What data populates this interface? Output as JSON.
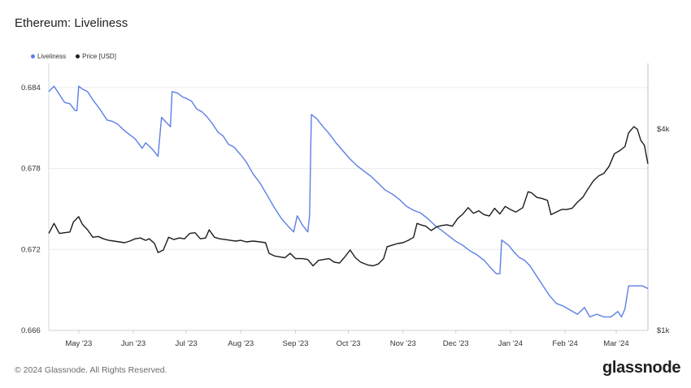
{
  "header": {
    "title": "Ethereum: Liveliness"
  },
  "footer": {
    "copyright": "© 2024 Glassnode. All Rights Reserved.",
    "brand": "glassnode"
  },
  "chart_data": {
    "type": "line",
    "title": "Ethereum: Liveliness",
    "legend_position": "top-left",
    "grid": true,
    "x_ticks": [
      "May '23",
      "Jun '23",
      "Jul '23",
      "Aug '23",
      "Sep '23",
      "Oct '23",
      "Nov '23",
      "Dec '23",
      "Jan '24",
      "Feb '24",
      "Mar '24"
    ],
    "x_tick_dates": [
      "2023-05-01",
      "2023-06-01",
      "2023-07-01",
      "2023-08-01",
      "2023-09-01",
      "2023-10-01",
      "2023-11-01",
      "2023-12-01",
      "2024-01-01",
      "2024-02-01",
      "2024-03-01"
    ],
    "xlim": [
      "2023-04-14",
      "2024-03-19"
    ],
    "y_left": {
      "ticks": [
        "0.684",
        "0.678",
        "0.672",
        "0.666"
      ],
      "tick_values": [
        0.684,
        0.678,
        0.672,
        0.666
      ],
      "ylim": [
        0.666,
        0.6858
      ]
    },
    "y_right": {
      "ticks": [
        "$4k",
        "$1k"
      ],
      "tick_values": [
        4000,
        1000
      ],
      "scale": "log",
      "ylim": [
        1000,
        6300
      ]
    },
    "series": [
      {
        "name": "Liveliness",
        "color": "#5b7fe6",
        "axis": "left",
        "points": [
          [
            "2023-04-14",
            0.6837
          ],
          [
            "2023-04-17",
            0.6841
          ],
          [
            "2023-04-20",
            0.6835
          ],
          [
            "2023-04-23",
            0.6829
          ],
          [
            "2023-04-26",
            0.6828
          ],
          [
            "2023-04-29",
            0.6823
          ],
          [
            "2023-04-30",
            0.6823
          ],
          [
            "2023-05-01",
            0.6841
          ],
          [
            "2023-05-03",
            0.6839
          ],
          [
            "2023-05-06",
            0.6837
          ],
          [
            "2023-05-09",
            0.6831
          ],
          [
            "2023-05-13",
            0.6824
          ],
          [
            "2023-05-17",
            0.6816
          ],
          [
            "2023-05-20",
            0.6815
          ],
          [
            "2023-05-23",
            0.6813
          ],
          [
            "2023-05-27",
            0.6808
          ],
          [
            "2023-05-30",
            0.6805
          ],
          [
            "2023-06-02",
            0.6802
          ],
          [
            "2023-06-06",
            0.6795
          ],
          [
            "2023-06-08",
            0.6799
          ],
          [
            "2023-06-12",
            0.6794
          ],
          [
            "2023-06-15",
            0.6789
          ],
          [
            "2023-06-17",
            0.6818
          ],
          [
            "2023-06-19",
            0.6815
          ],
          [
            "2023-06-22",
            0.6811
          ],
          [
            "2023-06-23",
            0.6837
          ],
          [
            "2023-06-26",
            0.6836
          ],
          [
            "2023-06-29",
            0.6833
          ],
          [
            "2023-07-01",
            0.6832
          ],
          [
            "2023-07-04",
            0.683
          ],
          [
            "2023-07-07",
            0.6824
          ],
          [
            "2023-07-10",
            0.6822
          ],
          [
            "2023-07-13",
            0.6818
          ],
          [
            "2023-07-16",
            0.6813
          ],
          [
            "2023-07-19",
            0.6807
          ],
          [
            "2023-07-22",
            0.6804
          ],
          [
            "2023-07-25",
            0.6798
          ],
          [
            "2023-07-28",
            0.6796
          ],
          [
            "2023-08-01",
            0.679
          ],
          [
            "2023-08-04",
            0.6785
          ],
          [
            "2023-08-08",
            0.6776
          ],
          [
            "2023-08-12",
            0.6769
          ],
          [
            "2023-08-16",
            0.676
          ],
          [
            "2023-08-20",
            0.6751
          ],
          [
            "2023-08-24",
            0.6743
          ],
          [
            "2023-08-28",
            0.6737
          ],
          [
            "2023-08-31",
            0.6733
          ],
          [
            "2023-09-02",
            0.6745
          ],
          [
            "2023-09-05",
            0.6738
          ],
          [
            "2023-09-08",
            0.6733
          ],
          [
            "2023-09-09",
            0.6745
          ],
          [
            "2023-09-10",
            0.682
          ],
          [
            "2023-09-13",
            0.6817
          ],
          [
            "2023-09-16",
            0.6812
          ],
          [
            "2023-09-20",
            0.6806
          ],
          [
            "2023-09-24",
            0.6799
          ],
          [
            "2023-09-28",
            0.6793
          ],
          [
            "2023-10-02",
            0.6787
          ],
          [
            "2023-10-06",
            0.6782
          ],
          [
            "2023-10-10",
            0.6778
          ],
          [
            "2023-10-14",
            0.6774
          ],
          [
            "2023-10-18",
            0.6769
          ],
          [
            "2023-10-22",
            0.6764
          ],
          [
            "2023-10-26",
            0.6761
          ],
          [
            "2023-10-30",
            0.6757
          ],
          [
            "2023-11-03",
            0.6752
          ],
          [
            "2023-11-07",
            0.6749
          ],
          [
            "2023-11-11",
            0.6747
          ],
          [
            "2023-11-15",
            0.6743
          ],
          [
            "2023-11-19",
            0.6738
          ],
          [
            "2023-11-23",
            0.6734
          ],
          [
            "2023-11-27",
            0.673
          ],
          [
            "2023-12-01",
            0.6726
          ],
          [
            "2023-12-05",
            0.6723
          ],
          [
            "2023-12-09",
            0.6719
          ],
          [
            "2023-12-13",
            0.6716
          ],
          [
            "2023-12-17",
            0.6712
          ],
          [
            "2023-12-21",
            0.6706
          ],
          [
            "2023-12-24",
            0.6702
          ],
          [
            "2023-12-26",
            0.6702
          ],
          [
            "2023-12-27",
            0.6727
          ],
          [
            "2023-12-31",
            0.6723
          ],
          [
            "2024-01-03",
            0.6718
          ],
          [
            "2024-01-06",
            0.6714
          ],
          [
            "2024-01-09",
            0.6712
          ],
          [
            "2024-01-12",
            0.6708
          ],
          [
            "2024-01-15",
            0.6702
          ],
          [
            "2024-01-19",
            0.6694
          ],
          [
            "2024-01-23",
            0.6686
          ],
          [
            "2024-01-27",
            0.668
          ],
          [
            "2024-01-31",
            0.6678
          ],
          [
            "2024-02-04",
            0.6675
          ],
          [
            "2024-02-08",
            0.6672
          ],
          [
            "2024-02-12",
            0.6677
          ],
          [
            "2024-02-15",
            0.667
          ],
          [
            "2024-02-19",
            0.6672
          ],
          [
            "2024-02-23",
            0.667
          ],
          [
            "2024-02-27",
            0.667
          ],
          [
            "2024-03-02",
            0.6674
          ],
          [
            "2024-03-04",
            0.667
          ],
          [
            "2024-03-06",
            0.6676
          ],
          [
            "2024-03-08",
            0.6693
          ],
          [
            "2024-03-12",
            0.6693
          ],
          [
            "2024-03-16",
            0.6693
          ],
          [
            "2024-03-19",
            0.6691
          ]
        ]
      },
      {
        "name": "Price [USD]",
        "color": "#1c1c1c",
        "axis": "right",
        "points": [
          [
            "2023-04-14",
            1950
          ],
          [
            "2023-04-17",
            2090
          ],
          [
            "2023-04-20",
            1950
          ],
          [
            "2023-04-23",
            1960
          ],
          [
            "2023-04-26",
            1970
          ],
          [
            "2023-04-28",
            2110
          ],
          [
            "2023-05-01",
            2190
          ],
          [
            "2023-05-03",
            2080
          ],
          [
            "2023-05-06",
            2000
          ],
          [
            "2023-05-09",
            1900
          ],
          [
            "2023-05-12",
            1910
          ],
          [
            "2023-05-15",
            1880
          ],
          [
            "2023-05-18",
            1860
          ],
          [
            "2023-05-21",
            1850
          ],
          [
            "2023-05-24",
            1840
          ],
          [
            "2023-05-27",
            1830
          ],
          [
            "2023-05-30",
            1850
          ],
          [
            "2023-06-02",
            1880
          ],
          [
            "2023-06-05",
            1890
          ],
          [
            "2023-06-08",
            1860
          ],
          [
            "2023-06-10",
            1880
          ],
          [
            "2023-06-13",
            1820
          ],
          [
            "2023-06-15",
            1710
          ],
          [
            "2023-06-18",
            1740
          ],
          [
            "2023-06-21",
            1900
          ],
          [
            "2023-06-24",
            1870
          ],
          [
            "2023-06-27",
            1890
          ],
          [
            "2023-06-30",
            1880
          ],
          [
            "2023-07-03",
            1950
          ],
          [
            "2023-07-06",
            1960
          ],
          [
            "2023-07-09",
            1880
          ],
          [
            "2023-07-12",
            1890
          ],
          [
            "2023-07-14",
            2000
          ],
          [
            "2023-07-17",
            1900
          ],
          [
            "2023-07-20",
            1880
          ],
          [
            "2023-07-23",
            1870
          ],
          [
            "2023-07-26",
            1860
          ],
          [
            "2023-07-29",
            1850
          ],
          [
            "2023-08-01",
            1860
          ],
          [
            "2023-08-04",
            1840
          ],
          [
            "2023-08-08",
            1850
          ],
          [
            "2023-08-12",
            1840
          ],
          [
            "2023-08-15",
            1830
          ],
          [
            "2023-08-17",
            1700
          ],
          [
            "2023-08-20",
            1670
          ],
          [
            "2023-08-23",
            1660
          ],
          [
            "2023-08-26",
            1650
          ],
          [
            "2023-08-29",
            1700
          ],
          [
            "2023-09-01",
            1640
          ],
          [
            "2023-09-05",
            1640
          ],
          [
            "2023-09-08",
            1630
          ],
          [
            "2023-09-11",
            1560
          ],
          [
            "2023-09-14",
            1620
          ],
          [
            "2023-09-17",
            1630
          ],
          [
            "2023-09-20",
            1640
          ],
          [
            "2023-09-23",
            1600
          ],
          [
            "2023-09-26",
            1590
          ],
          [
            "2023-09-29",
            1660
          ],
          [
            "2023-10-02",
            1740
          ],
          [
            "2023-10-05",
            1650
          ],
          [
            "2023-10-08",
            1600
          ],
          [
            "2023-10-12",
            1570
          ],
          [
            "2023-10-15",
            1560
          ],
          [
            "2023-10-18",
            1580
          ],
          [
            "2023-10-21",
            1640
          ],
          [
            "2023-10-23",
            1780
          ],
          [
            "2023-10-26",
            1800
          ],
          [
            "2023-10-29",
            1820
          ],
          [
            "2023-11-01",
            1830
          ],
          [
            "2023-11-04",
            1860
          ],
          [
            "2023-11-07",
            1900
          ],
          [
            "2023-11-09",
            2090
          ],
          [
            "2023-11-11",
            2070
          ],
          [
            "2023-11-14",
            2050
          ],
          [
            "2023-11-17",
            1990
          ],
          [
            "2023-11-20",
            2040
          ],
          [
            "2023-11-23",
            2060
          ],
          [
            "2023-11-26",
            2070
          ],
          [
            "2023-11-29",
            2050
          ],
          [
            "2023-12-02",
            2160
          ],
          [
            "2023-12-05",
            2230
          ],
          [
            "2023-12-08",
            2330
          ],
          [
            "2023-12-11",
            2240
          ],
          [
            "2023-12-14",
            2280
          ],
          [
            "2023-12-17",
            2220
          ],
          [
            "2023-12-20",
            2200
          ],
          [
            "2023-12-23",
            2320
          ],
          [
            "2023-12-26",
            2230
          ],
          [
            "2023-12-29",
            2350
          ],
          [
            "2024-01-01",
            2300
          ],
          [
            "2024-01-04",
            2260
          ],
          [
            "2024-01-08",
            2330
          ],
          [
            "2024-01-11",
            2600
          ],
          [
            "2024-01-13",
            2580
          ],
          [
            "2024-01-16",
            2500
          ],
          [
            "2024-01-19",
            2480
          ],
          [
            "2024-01-22",
            2450
          ],
          [
            "2024-01-24",
            2220
          ],
          [
            "2024-01-27",
            2260
          ],
          [
            "2024-01-30",
            2300
          ],
          [
            "2024-02-02",
            2300
          ],
          [
            "2024-02-05",
            2320
          ],
          [
            "2024-02-08",
            2420
          ],
          [
            "2024-02-11",
            2500
          ],
          [
            "2024-02-14",
            2650
          ],
          [
            "2024-02-17",
            2800
          ],
          [
            "2024-02-20",
            2900
          ],
          [
            "2024-02-23",
            2950
          ],
          [
            "2024-02-26",
            3100
          ],
          [
            "2024-02-29",
            3380
          ],
          [
            "2024-03-03",
            3450
          ],
          [
            "2024-03-06",
            3550
          ],
          [
            "2024-03-08",
            3900
          ],
          [
            "2024-03-11",
            4070
          ],
          [
            "2024-03-13",
            4000
          ],
          [
            "2024-03-15",
            3700
          ],
          [
            "2024-03-17",
            3580
          ],
          [
            "2024-03-19",
            3150
          ]
        ]
      }
    ]
  }
}
